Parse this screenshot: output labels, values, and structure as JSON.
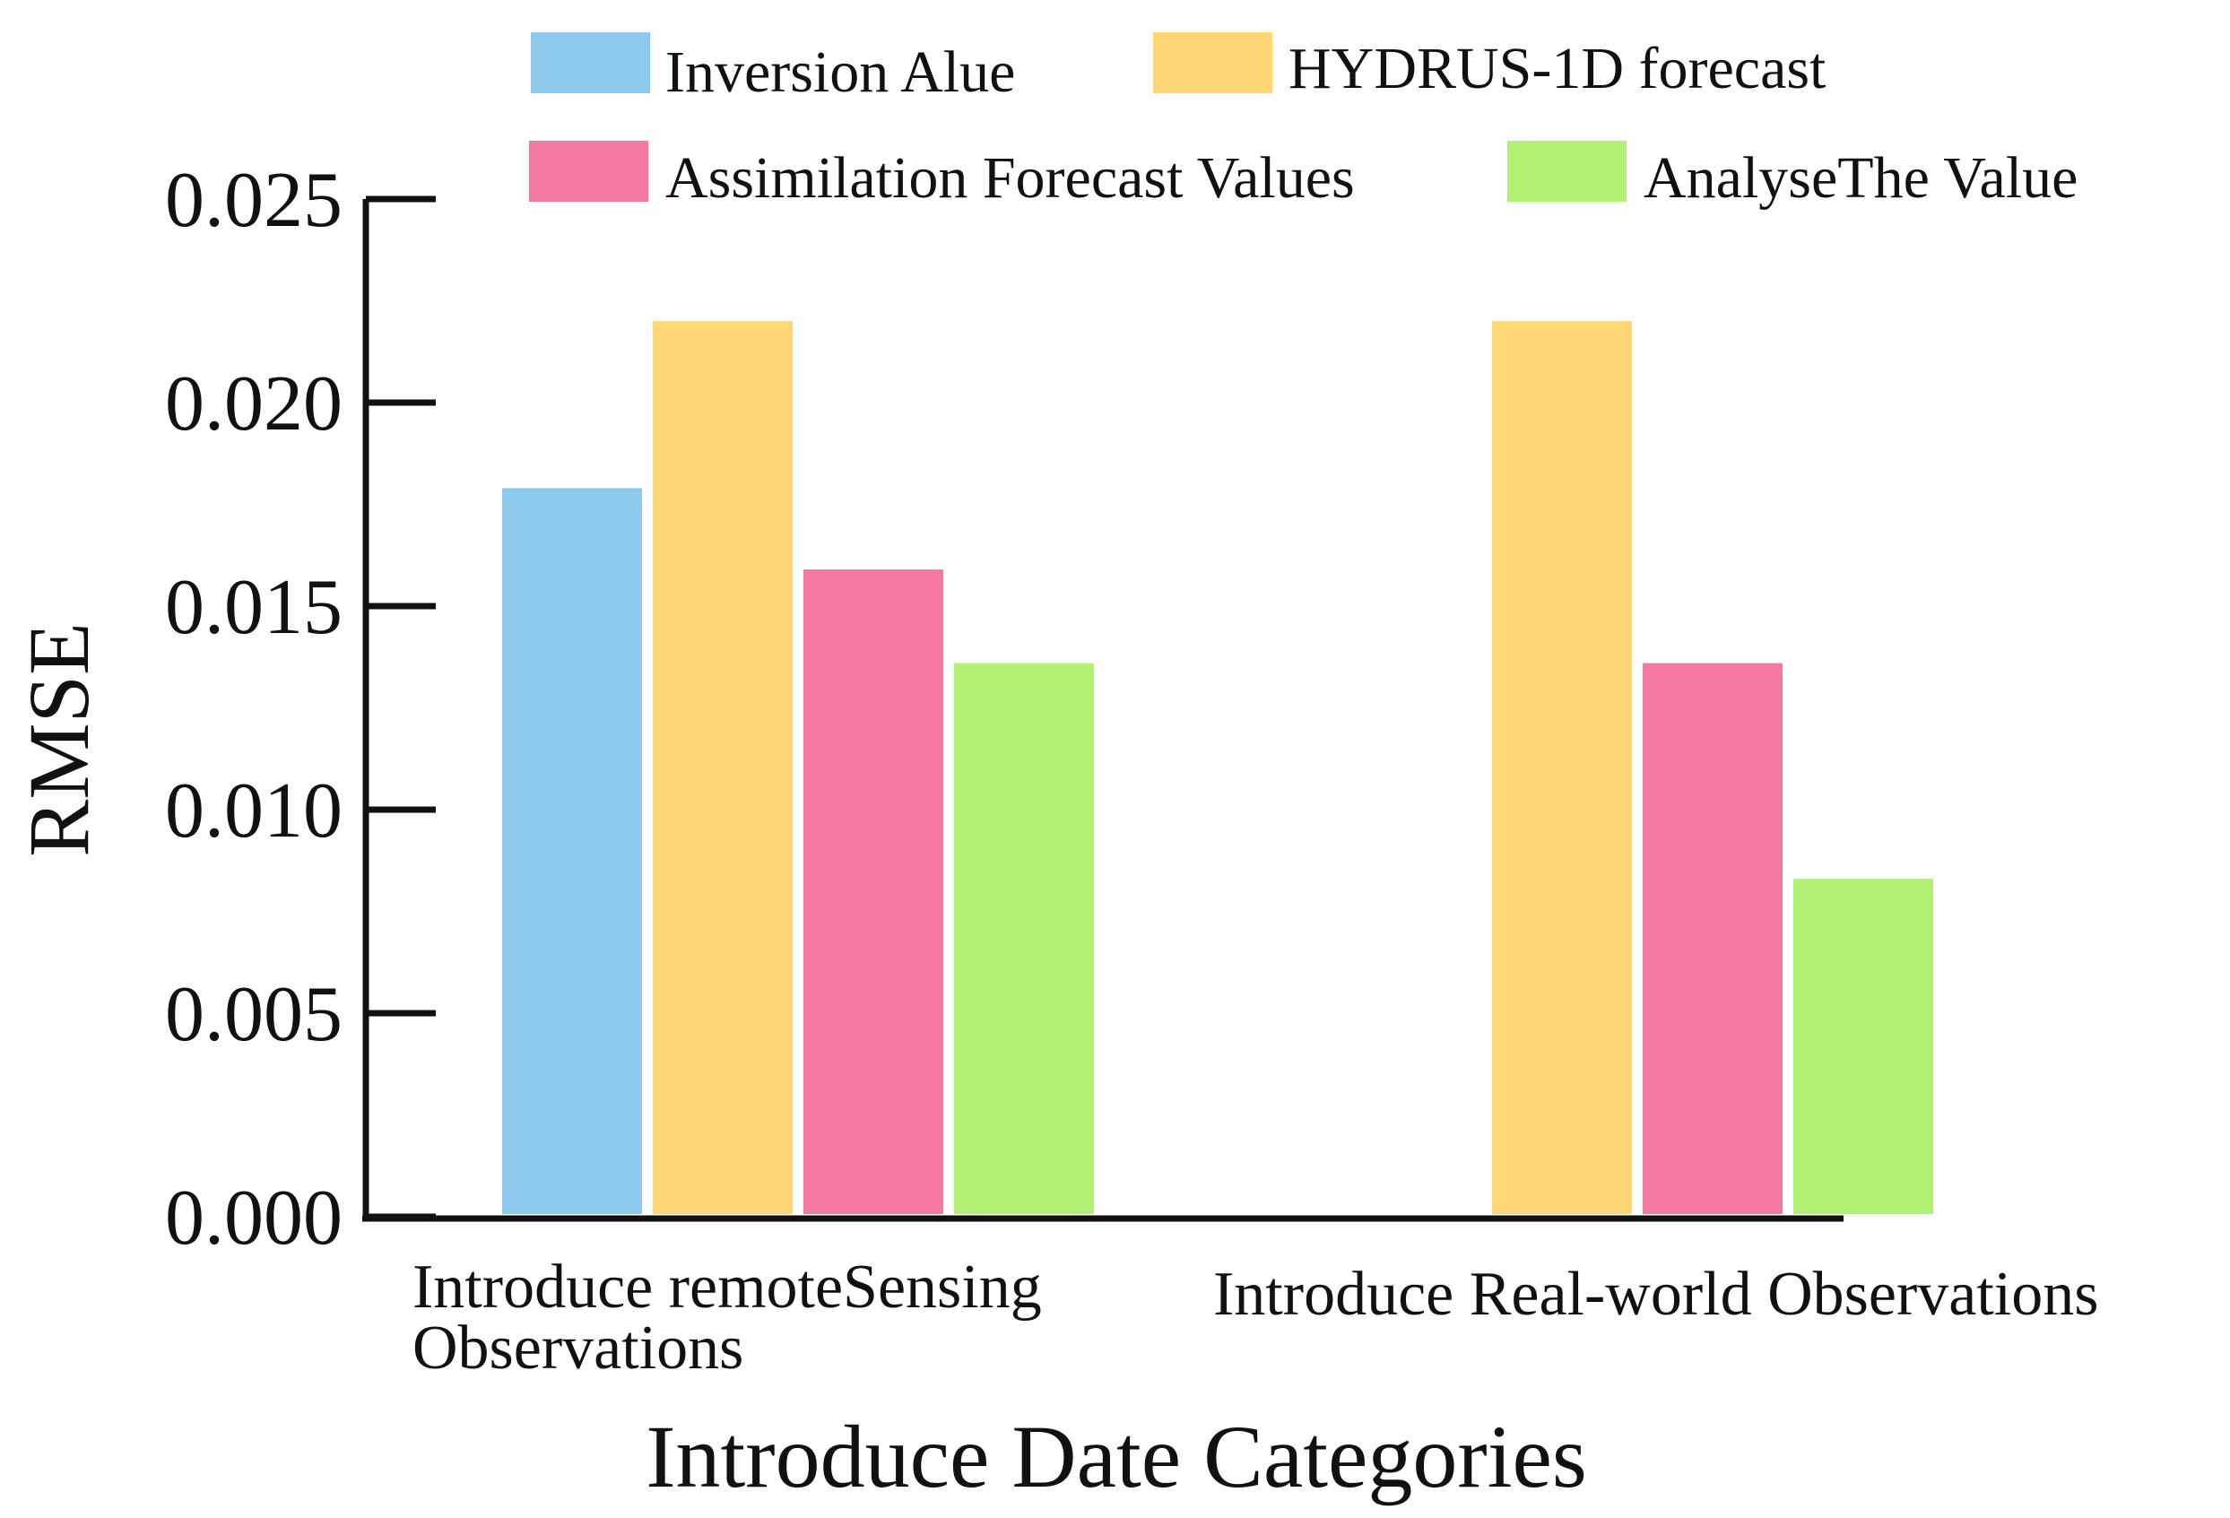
{
  "chart_data": {
    "type": "bar",
    "title": "",
    "xlabel": "Introduce Date Categories",
    "ylabel": "RMSE",
    "ylim": [
      0,
      0.025
    ],
    "yticks": [
      "0.000",
      "0.005",
      "0.010",
      "0.015",
      "0.020",
      "0.025"
    ],
    "grid": false,
    "legend_position": "top",
    "categories": [
      [
        "Introduce remoteSensing",
        "Observations"
      ],
      [
        "Introduce Real-world Observations"
      ]
    ],
    "series": [
      {
        "name": "Inversion Alue",
        "color": "#8ECAEE",
        "values": [
          0.0179,
          null
        ]
      },
      {
        "name": "HYDRUS-1D forecast",
        "color": "#FED674",
        "values": [
          0.022,
          0.022
        ]
      },
      {
        "name": "Assimilation Forecast Values",
        "color": "#F378A2",
        "values": [
          0.0159,
          0.0136
        ]
      },
      {
        "name": "AnalyseThe Value",
        "color": "#B3F175",
        "values": [
          0.0136,
          0.0083
        ]
      }
    ]
  }
}
